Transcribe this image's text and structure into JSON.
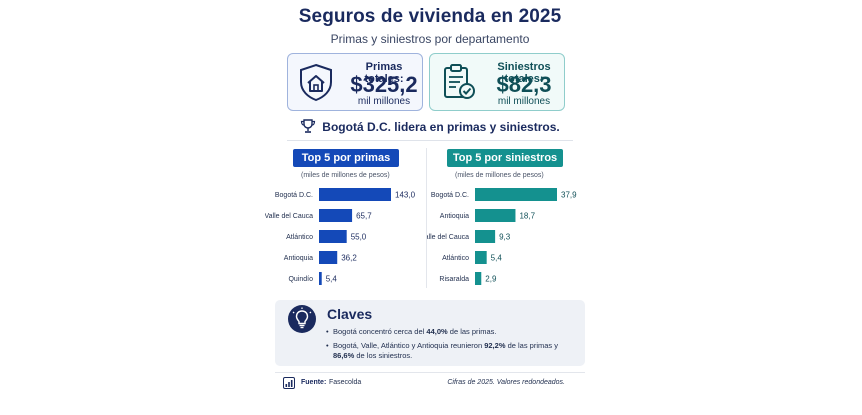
{
  "header": {
    "title": "Seguros de vivienda en 2025",
    "subtitle": "Primas y siniestros por departamento"
  },
  "kpis": {
    "primas": {
      "label": "Primas totales:",
      "value": "$325,2",
      "unit": "mil millones",
      "icon": "house-shield-icon"
    },
    "siniestros": {
      "label": "Siniestros totales:",
      "value": "$82,3",
      "unit": "mil millones",
      "icon": "clipboard-check-icon"
    }
  },
  "lead": {
    "text": "Bogotá D.C. lidera en primas y siniestros.",
    "icon": "trophy-icon"
  },
  "colors": {
    "blue": "#1449b8",
    "teal": "#14918f",
    "navy": "#1a2a5e"
  },
  "chart_data": [
    {
      "type": "bar",
      "orientation": "horizontal",
      "title": "Top 5 por primas",
      "subtitle": "(miles de millones de pesos)",
      "categories": [
        "Bogotá D.C.",
        "Valle del Cauca",
        "Atlántico",
        "Antioquia",
        "Quindío"
      ],
      "values": [
        143.0,
        65.7,
        55.0,
        36.2,
        5.4
      ],
      "value_labels": [
        "143,0",
        "65,7",
        "55,0",
        "36,2",
        "5,4"
      ],
      "xlim": [
        0,
        143.0
      ],
      "color": "#1449b8",
      "grid": false
    },
    {
      "type": "bar",
      "orientation": "horizontal",
      "title": "Top 5 por siniestros",
      "subtitle": "(miles de millones de pesos)",
      "categories": [
        "Bogotá D.C.",
        "Antioquia",
        "Valle del Cauca",
        "Atlántico",
        "Risaralda"
      ],
      "values": [
        37.9,
        18.7,
        9.3,
        5.4,
        2.9
      ],
      "value_labels": [
        "37,9",
        "18,7",
        "9,3",
        "5,4",
        "2,9"
      ],
      "xlim": [
        0,
        37.9
      ],
      "color": "#14918f",
      "grid": false
    }
  ],
  "keys": {
    "title": "Claves",
    "icon": "lightbulb-icon",
    "items": [
      {
        "pre": "Bogotá concentró cerca del ",
        "bold": "44,0%",
        "post": " de las primas."
      },
      {
        "pre": "Bogotá, Valle, Atlántico y Antioquia reunieron ",
        "bold": "92,2%",
        "mid": " de las primas y ",
        "bold2": "86,6%",
        "post": " de los siniestros."
      }
    ]
  },
  "footer": {
    "source_label": "Fuente:",
    "source": "Fasecolda",
    "note": "Cifras de 2025. Valores redondeados.",
    "icon": "bar-chart-icon"
  }
}
